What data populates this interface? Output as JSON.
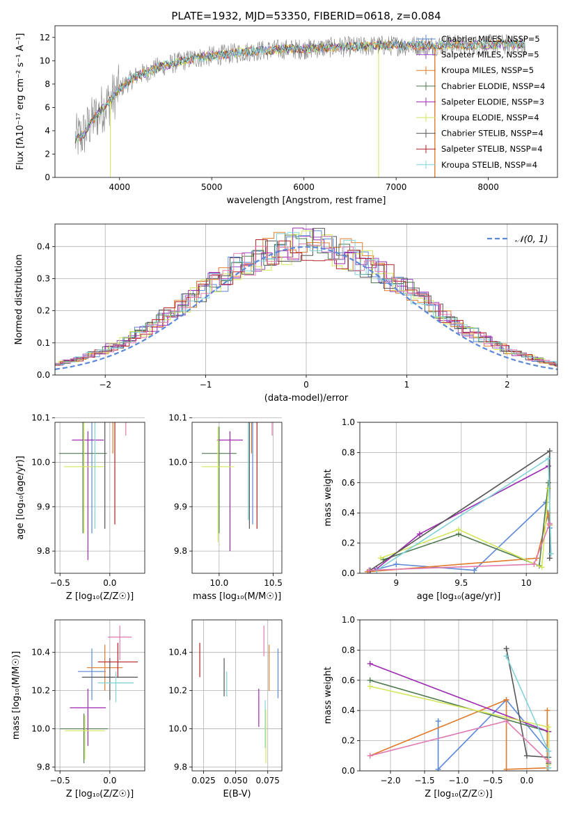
{
  "page": {
    "title": "PLATE=1932, MJD=53350, FIBERID=0618, z=0.084"
  },
  "colors": {
    "Chabrier MILES": "#5b88d6",
    "Salpeter MILES": "#9a4fc6",
    "Kroupa MILES": "#e07a2a",
    "Chabrier ELODIE": "#4f7a4f",
    "Salpeter ELODIE": "#9b2ab0",
    "Kroupa ELODIE": "#d3e65a",
    "Chabrier STELIB": "#555555",
    "Salpeter STELIB": "#b22222",
    "Kroupa STELIB": "#7fd3d8",
    "pink": "#e07ab0",
    "grey_spec": "#808080"
  },
  "chart_data": [
    {
      "id": "spectrum",
      "type": "line",
      "title": "PLATE=1932, MJD=53350, FIBERID=0618, z=0.084",
      "xlabel": "wavelength [Angstrom, rest frame]",
      "ylabel": "Flux [fλ10⁻¹⁷ erg cm⁻² s⁻¹ A⁻¹]",
      "xlim": [
        3300,
        8750
      ],
      "ylim": [
        0,
        13
      ],
      "xticks": [
        4000,
        5000,
        6000,
        7000,
        8000
      ],
      "yticks": [
        0,
        2,
        4,
        6,
        8,
        10,
        12
      ],
      "grid": false,
      "legend_position": "right",
      "legend": [
        "Chabrier MILES, N_SSP=5",
        "Salpeter MILES, N_SSP=5",
        "Kroupa MILES, N_SSP=5",
        "Chabrier ELODIE, N_SSP=4",
        "Salpeter ELODIE, N_SSP=3",
        "Kroupa ELODIE, N_SSP=4",
        "Chabrier STELIB, N_SSP=4",
        "Salpeter STELIB, N_SSP=4",
        "Kroupa STELIB, N_SSP=4"
      ],
      "continuum": {
        "x": [
          3500,
          3600,
          3700,
          3800,
          3900,
          4000,
          4100,
          4200,
          4300,
          4400,
          4500,
          4600,
          4800,
          5000,
          5200,
          5400,
          5600,
          5800,
          6000,
          6200,
          6400,
          6600,
          6800,
          7000,
          7200,
          7400,
          7600,
          7800,
          8000,
          8200,
          8400
        ],
        "y": [
          3.2,
          3.6,
          4.8,
          5.8,
          6.6,
          7.6,
          8.2,
          8.8,
          9.0,
          9.4,
          9.6,
          9.8,
          10.2,
          10.4,
          10.6,
          10.8,
          10.9,
          11.0,
          11.0,
          11.1,
          11.2,
          11.2,
          11.3,
          11.3,
          11.3,
          11.3,
          11.4,
          11.3,
          11.4,
          11.4,
          11.4
        ]
      }
    },
    {
      "id": "residuals",
      "type": "line",
      "xlabel": "(data-model)/error",
      "ylabel": "Normed distribution",
      "xlim": [
        -2.5,
        2.5
      ],
      "ylim": [
        0,
        0.47
      ],
      "xticks": [
        -2,
        -1,
        0,
        1,
        2
      ],
      "yticks": [
        0.0,
        0.1,
        0.2,
        0.3,
        0.4
      ],
      "grid": true,
      "legend_position": "top-right",
      "legend": [
        "𝒩(0, 1)"
      ],
      "series": [
        {
          "name": "𝒩(0, 1)",
          "mean": 0,
          "sigma": 1
        }
      ]
    },
    {
      "id": "age_vs_Z",
      "type": "scatter",
      "xlabel": "Z [log₁₀(Z/Z☉)]",
      "ylabel": "age  [log₁₀(age/yr)]",
      "xlim": [
        -0.55,
        0.35
      ],
      "ylim": [
        9.75,
        10.09
      ],
      "xticks": [
        -0.5,
        0.0
      ],
      "yticks": [
        9.8,
        9.9,
        10.0,
        10.1
      ],
      "grid": true,
      "points": [
        {
          "series": "Chabrier MILES",
          "x": -0.18,
          "xerr": 0.22,
          "y": 10.13,
          "yerr": [
            0.29,
            0.04
          ]
        },
        {
          "series": "Kroupa MILES",
          "x": 0.03,
          "xerr": 0.16,
          "y": 10.12,
          "yerr": [
            0.1,
            0.04
          ]
        },
        {
          "series": "Chabrier ELODIE",
          "x": -0.27,
          "xerr": 0.24,
          "y": 10.02,
          "yerr": [
            0.18,
            0.07
          ]
        },
        {
          "series": "Salpeter ELODIE",
          "x": -0.22,
          "xerr": 0.16,
          "y": 10.05,
          "yerr": [
            0.27,
            0.02
          ]
        },
        {
          "series": "Kroupa ELODIE",
          "x": -0.26,
          "xerr": 0.2,
          "y": 9.99,
          "yerr": [
            0.15,
            0.1
          ]
        },
        {
          "series": "Chabrier STELIB",
          "x": -0.05,
          "xerr": 0.2,
          "y": 10.14,
          "yerr": [
            0.29,
            0.0
          ]
        },
        {
          "series": "Salpeter STELIB",
          "x": 0.05,
          "xerr": 0.24,
          "y": 10.1,
          "yerr": [
            0.24,
            0.0
          ]
        },
        {
          "series": "Kroupa STELIB",
          "x": -0.15,
          "xerr": 0.1,
          "y": 10.11,
          "yerr": [
            0.26,
            0.0
          ]
        },
        {
          "series": "pink",
          "x": 0.16,
          "xerr": 0.08,
          "y": 10.14,
          "yerr": [
            0.08,
            0.02
          ]
        }
      ]
    },
    {
      "id": "age_vs_mass",
      "type": "scatter",
      "xlabel": "mass [log₁₀(M/M☉)]",
      "xlim": [
        9.75,
        10.58
      ],
      "ylim": [
        9.75,
        10.09
      ],
      "xticks": [
        10.0,
        10.5
      ],
      "yticks": [
        9.8,
        9.9,
        10.0,
        10.1
      ],
      "grid": true,
      "points": [
        {
          "series": "Chabrier MILES",
          "x": 10.31,
          "xerr": 0.12,
          "y": 10.14,
          "yerr": [
            0.28,
            0.03
          ]
        },
        {
          "series": "Kroupa MILES",
          "x": 10.3,
          "xerr": 0.09,
          "y": 10.12,
          "yerr": [
            0.1,
            0.04
          ]
        },
        {
          "series": "Chabrier ELODIE",
          "x": 10.0,
          "xerr": 0.16,
          "y": 10.02,
          "yerr": [
            0.18,
            0.06
          ]
        },
        {
          "series": "Salpeter ELODIE",
          "x": 10.1,
          "xerr": 0.12,
          "y": 10.05,
          "yerr": [
            0.25,
            0.02
          ]
        },
        {
          "series": "Kroupa ELODIE",
          "x": 9.99,
          "xerr": 0.15,
          "y": 9.99,
          "yerr": [
            0.17,
            0.09
          ]
        },
        {
          "series": "Chabrier STELIB",
          "x": 10.28,
          "xerr": 0.11,
          "y": 10.14,
          "yerr": [
            0.29,
            0.0
          ]
        },
        {
          "series": "Salpeter STELIB",
          "x": 10.35,
          "xerr": 0.1,
          "y": 10.1,
          "yerr": [
            0.25,
            0.0
          ]
        },
        {
          "series": "Kroupa STELIB",
          "x": 10.27,
          "xerr": 0.05,
          "y": 10.11,
          "yerr": [
            0.24,
            0.0
          ]
        },
        {
          "series": "pink",
          "x": 10.49,
          "xerr": 0.05,
          "y": 10.14,
          "yerr": [
            0.08,
            0.02
          ]
        }
      ]
    },
    {
      "id": "weight_vs_age",
      "type": "line",
      "xlabel": "age  [log₁₀(age/yr)]",
      "ylabel": "mass weight",
      "xlim": [
        8.72,
        10.24
      ],
      "ylim": [
        0.0,
        1.0
      ],
      "xticks": [
        9.0,
        9.5,
        10.0
      ],
      "yticks": [
        0.0,
        0.2,
        0.4,
        0.6,
        0.8,
        1.0
      ],
      "grid": true,
      "series": [
        {
          "series": "Chabrier MILES",
          "x": [
            8.78,
            9.0,
            9.6,
            10.15,
            10.18,
            10.19
          ],
          "y": [
            0.01,
            0.06,
            0.02,
            0.47,
            0.3,
            0.13
          ]
        },
        {
          "series": "Kroupa MILES",
          "x": [
            8.78,
            10.08,
            10.17,
            10.18
          ],
          "y": [
            0.01,
            0.1,
            0.4,
            0.32
          ]
        },
        {
          "series": "Chabrier ELODIE",
          "x": [
            8.9,
            9.48,
            10.1,
            10.17
          ],
          "y": [
            0.09,
            0.26,
            0.05,
            0.6
          ]
        },
        {
          "series": "Salpeter ELODIE",
          "x": [
            8.85,
            9.18,
            10.17
          ],
          "y": [
            0.03,
            0.26,
            0.71
          ]
        },
        {
          "series": "Kroupa ELODIE",
          "x": [
            8.88,
            9.48,
            10.12,
            10.17
          ],
          "y": [
            0.1,
            0.29,
            0.04,
            0.56
          ]
        },
        {
          "series": "Chabrier STELIB",
          "x": [
            8.8,
            10.18,
            10.18
          ],
          "y": [
            0.02,
            0.81,
            0.1
          ]
        },
        {
          "series": "Kroupa STELIB",
          "x": [
            8.85,
            10.17,
            10.19
          ],
          "y": [
            0.02,
            0.76,
            0.13
          ]
        },
        {
          "series": "pink",
          "x": [
            8.79,
            10.06,
            10.18
          ],
          "y": [
            0.02,
            0.06,
            0.33
          ]
        }
      ]
    },
    {
      "id": "mass_vs_Z",
      "type": "scatter",
      "xlabel": "Z [log₁₀(Z/Z☉)]",
      "ylabel": "mass [log₁₀(M/M☉)]",
      "xlim": [
        -0.55,
        0.35
      ],
      "ylim": [
        9.78,
        10.57
      ],
      "xticks": [
        -0.5,
        0.0
      ],
      "yticks": [
        9.8,
        10.0,
        10.2,
        10.4
      ],
      "grid": true,
      "points": [
        {
          "series": "Chabrier MILES",
          "x": -0.18,
          "xerr": 0.14,
          "y": 10.3,
          "yerr": [
            0.15,
            0.12
          ]
        },
        {
          "series": "Kroupa MILES",
          "x": -0.05,
          "xerr": 0.18,
          "y": 10.32,
          "yerr": [
            0.12,
            0.12
          ]
        },
        {
          "series": "Chabrier ELODIE",
          "x": -0.26,
          "xerr": 0.24,
          "y": 10.0,
          "yerr": [
            0.18,
            0.08
          ]
        },
        {
          "series": "Salpeter ELODIE",
          "x": -0.22,
          "xerr": 0.18,
          "y": 10.11,
          "yerr": [
            0.2,
            0.1
          ]
        },
        {
          "series": "Kroupa ELODIE",
          "x": -0.25,
          "xerr": 0.2,
          "y": 9.99,
          "yerr": [
            0.15,
            0.08
          ]
        },
        {
          "series": "Chabrier STELIB",
          "x": 0.0,
          "xerr": 0.28,
          "y": 10.27,
          "yerr": [
            0.12,
            0.1
          ]
        },
        {
          "series": "Salpeter STELIB",
          "x": 0.08,
          "xerr": 0.2,
          "y": 10.35,
          "yerr": [
            0.08,
            0.1
          ]
        },
        {
          "series": "Kroupa STELIB",
          "x": 0.06,
          "xerr": 0.18,
          "y": 10.24,
          "yerr": [
            0.1,
            0.06
          ]
        },
        {
          "series": "pink",
          "x": 0.1,
          "xerr": 0.12,
          "y": 10.48,
          "yerr": [
            0.12,
            0.06
          ]
        }
      ]
    },
    {
      "id": "mass_vs_ebv",
      "type": "scatter",
      "xlabel": "E(B-V)",
      "xlim": [
        0.016,
        0.086
      ],
      "ylim": [
        9.78,
        10.57
      ],
      "xticks": [
        0.025,
        0.05,
        0.075
      ],
      "yticks": [
        9.8,
        10.0,
        10.2,
        10.4
      ],
      "grid": true,
      "points": [
        {
          "series": "Salpeter STELIB",
          "x": 0.022,
          "y": 10.35,
          "yerr": [
            0.08,
            0.1
          ]
        },
        {
          "series": "Chabrier STELIB",
          "x": 0.041,
          "y": 10.27,
          "yerr": [
            0.1,
            0.1
          ]
        },
        {
          "series": "Kroupa STELIB",
          "x": 0.043,
          "y": 10.24,
          "yerr": [
            0.07,
            0.06
          ]
        },
        {
          "series": "Salpeter ELODIE",
          "x": 0.068,
          "y": 10.11,
          "yerr": [
            0.1,
            0.1
          ]
        },
        {
          "series": "pink",
          "x": 0.072,
          "y": 10.48,
          "yerr": [
            0.1,
            0.06
          ]
        },
        {
          "series": "Kroupa STELIB",
          "x": 0.073,
          "y": 10.1,
          "yerr": [
            0.2,
            0.05
          ]
        },
        {
          "series": "Kroupa ELODIE",
          "x": 0.0735,
          "y": 10.0,
          "yerr": [
            0.18,
            0.1
          ]
        },
        {
          "series": "Kroupa MILES",
          "x": 0.076,
          "y": 10.32,
          "yerr": [
            0.12,
            0.12
          ]
        },
        {
          "series": "Chabrier MILES",
          "x": 0.083,
          "y": 10.3,
          "yerr": [
            0.14,
            0.12
          ]
        }
      ]
    },
    {
      "id": "weight_vs_Z",
      "type": "line",
      "xlabel": "Z [log₁₀(Z/Z☉)]",
      "ylabel": "mass weight",
      "xlim": [
        -2.45,
        0.45
      ],
      "ylim": [
        0.0,
        1.0
      ],
      "xticks": [
        -2.0,
        -1.5,
        -1.0,
        -0.5,
        0.0
      ],
      "yticks": [
        0.0,
        0.2,
        0.4,
        0.6,
        0.8,
        1.0
      ],
      "grid": true,
      "series": [
        {
          "series": "Chabrier MILES",
          "x": [
            -1.3,
            -1.3,
            -0.3,
            0.32,
            0.32
          ],
          "y": [
            0.33,
            0.01,
            0.47,
            0.13,
            0.02
          ]
        },
        {
          "series": "Kroupa MILES",
          "x": [
            -2.3,
            -0.3,
            -0.3,
            0.3,
            0.3
          ],
          "y": [
            0.1,
            0.47,
            0.01,
            0.02,
            0.4
          ]
        },
        {
          "series": "Chabrier ELODIE",
          "x": [
            -2.3,
            0.32,
            0.32
          ],
          "y": [
            0.6,
            0.26,
            0.05
          ]
        },
        {
          "series": "Salpeter ELODIE",
          "x": [
            -2.3,
            0.32
          ],
          "y": [
            0.71,
            0.26
          ]
        },
        {
          "series": "Kroupa ELODIE",
          "x": [
            -2.3,
            0.32,
            0.32
          ],
          "y": [
            0.56,
            0.29,
            0.04
          ]
        },
        {
          "series": "Chabrier STELIB",
          "x": [
            -0.3,
            0.0,
            0.32
          ],
          "y": [
            0.81,
            0.1,
            0.09
          ]
        },
        {
          "series": "Kroupa STELIB",
          "x": [
            -0.3,
            0.32,
            0.32
          ],
          "y": [
            0.76,
            0.13,
            0.02
          ]
        },
        {
          "series": "pink",
          "x": [
            -2.3,
            -0.3,
            0.32
          ],
          "y": [
            0.1,
            0.33,
            0.06
          ]
        }
      ]
    }
  ]
}
